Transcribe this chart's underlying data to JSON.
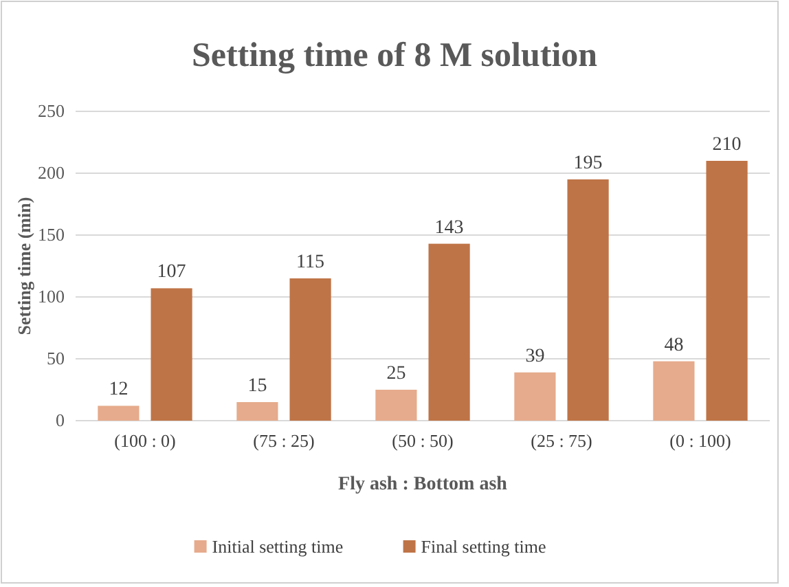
{
  "chart_data": {
    "type": "bar",
    "title": "Setting time of 8 M solution",
    "xlabel": "Fly ash : Bottom ash",
    "ylabel": "Setting time (min)",
    "categories": [
      "(100 : 0)",
      "(75 : 25)",
      "(50 : 50)",
      "(25 : 75)",
      "(0 : 100)"
    ],
    "series": [
      {
        "name": "Initial setting time",
        "color": "#e6ab8c",
        "values": [
          12,
          15,
          25,
          39,
          48
        ]
      },
      {
        "name": "Final setting time",
        "color": "#bf7447",
        "values": [
          107,
          115,
          143,
          195,
          210
        ]
      }
    ],
    "ylim": [
      0,
      250
    ],
    "yticks": [
      0,
      50,
      100,
      150,
      200,
      250
    ],
    "grid": "y",
    "legend": "bottom",
    "data_labels": true
  }
}
